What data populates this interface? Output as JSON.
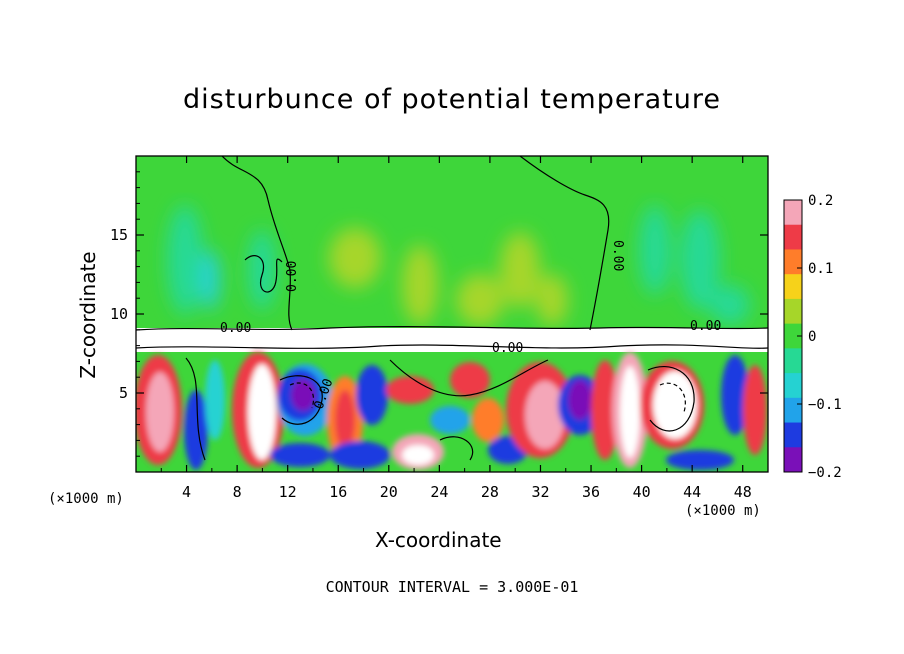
{
  "chart_data": {
    "type": "heatmap",
    "title": "disturbunce of potential temperature",
    "xlabel": "X-coordinate",
    "ylabel": "Z-coordinate",
    "x_unit": "(×1000 m)",
    "x_ticks": [
      4,
      8,
      12,
      16,
      20,
      24,
      28,
      32,
      36,
      40,
      44,
      48
    ],
    "y_ticks": [
      5,
      10,
      15
    ],
    "xlim": [
      0,
      50
    ],
    "ylim": [
      0,
      20
    ],
    "colorbar": {
      "ticks": [
        "0.2",
        "0.1",
        "0",
        "−0.1",
        "−0.2"
      ],
      "range": [
        -0.2,
        0.2
      ],
      "colors": [
        "#f4a6b8",
        "#ee3b47",
        "#ff7d2a",
        "#f6d21a",
        "#a6d629",
        "#3ed63a",
        "#26d994",
        "#25d2d2",
        "#21a3ea",
        "#1e3be0",
        "#7a10b8"
      ]
    },
    "contour_labels": [
      "0.00",
      "0.00",
      "0.00",
      "0.00",
      "0.00",
      "0.00"
    ],
    "contour_interval": "CONTOUR INTERVAL = 3.000E-01"
  }
}
